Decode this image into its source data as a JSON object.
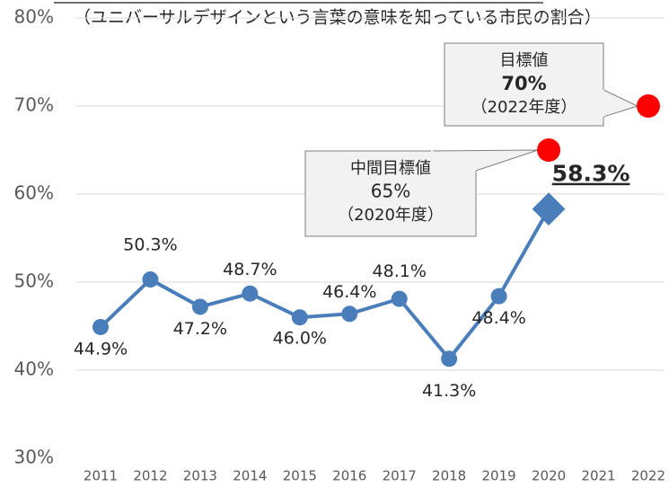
{
  "chart_data": {
    "type": "line",
    "subtitle": "（ユニバーサルデザインという言葉の意味を知っている市民の割合）",
    "categories": [
      "2011",
      "2012",
      "2013",
      "2014",
      "2015",
      "2016",
      "2017",
      "2018",
      "2019",
      "2020",
      "2021",
      "2022"
    ],
    "series": [
      {
        "color": "#4a7ebb",
        "values": [
          44.9,
          50.3,
          47.2,
          48.7,
          46.0,
          46.4,
          48.1,
          41.3,
          48.4,
          58.3,
          null,
          null
        ],
        "value_labels": [
          "44.9%",
          "50.3%",
          "47.2%",
          "48.7%",
          "46.0%",
          "46.4%",
          "48.1%",
          "41.3%",
          "48.4%",
          "58.3%",
          null,
          null
        ]
      }
    ],
    "targets": [
      {
        "title": "中間目標値",
        "x": "2020",
        "value": 65,
        "value_label": "65%",
        "period": "（2020年度）",
        "color": "#ff0000"
      },
      {
        "title": "目標値",
        "x": "2022",
        "value": 70,
        "value_label": "70%",
        "period": "（2022年度）",
        "color": "#ff0000"
      }
    ],
    "ylim": [
      30,
      80
    ],
    "yticks": [
      {
        "value": 30,
        "label": "30%"
      },
      {
        "value": 40,
        "label": "40%"
      },
      {
        "value": 50,
        "label": "50%"
      },
      {
        "value": 60,
        "label": "60%"
      },
      {
        "value": 70,
        "label": "70%"
      },
      {
        "value": 80,
        "label": "80%"
      }
    ],
    "grid": true
  }
}
